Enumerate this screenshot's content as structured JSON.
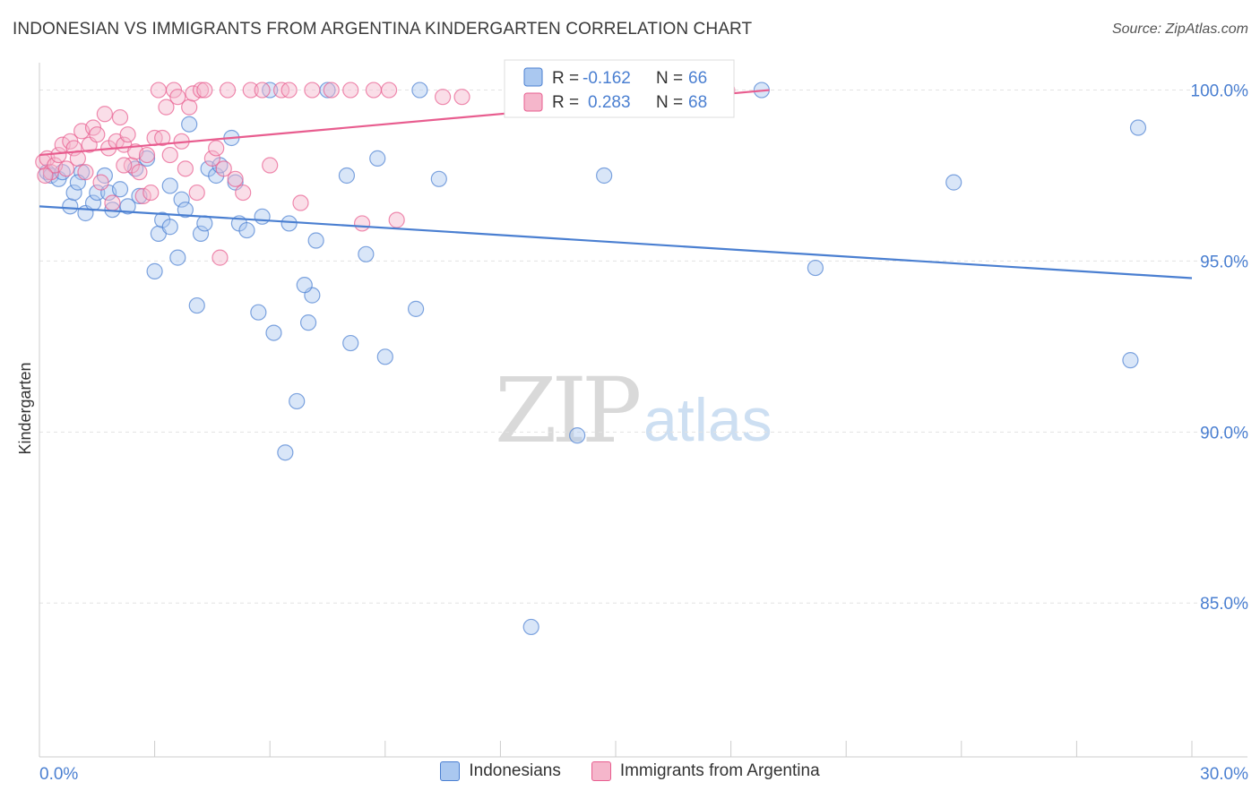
{
  "title": "INDONESIAN VS IMMIGRANTS FROM ARGENTINA KINDERGARTEN CORRELATION CHART",
  "source": "Source: ZipAtlas.com",
  "watermark": {
    "zip": "ZIP",
    "atlas": "atlas"
  },
  "colors": {
    "blue": "#4a7fd1",
    "blue_fill": "#aac8f0",
    "pink": "#e85d8f",
    "pink_fill": "#f5b6cb"
  },
  "legend": {
    "rows": [
      {
        "r_label": "R =",
        "r_value": "-0.162",
        "n_label": "N =",
        "n_value": "66"
      },
      {
        "r_label": "R =",
        "r_value": "0.283",
        "n_label": "N =",
        "n_value": "68"
      }
    ]
  },
  "chart_data": {
    "type": "scatter",
    "title": "INDONESIAN VS IMMIGRANTS FROM ARGENTINA KINDERGARTEN CORRELATION CHART",
    "xlabel": "",
    "ylabel": "Kindergarten",
    "xlim": [
      0,
      30
    ],
    "ylim": [
      80.5,
      100.8
    ],
    "x_tick_labels": [
      "0.0%",
      "30.0%"
    ],
    "y_ticks": [
      85,
      90,
      95,
      100
    ],
    "y_tick_labels": [
      "85.0%",
      "90.0%",
      "95.0%",
      "100.0%"
    ],
    "legend_position": "bottom-center",
    "series": [
      {
        "name": "Indonesians",
        "color": "#4a7fd1",
        "r": -0.162,
        "n": 66,
        "trend": {
          "x": [
            0,
            30
          ],
          "y": [
            96.6,
            94.5
          ]
        },
        "points": [
          [
            0.2,
            97.6
          ],
          [
            0.3,
            97.5
          ],
          [
            0.5,
            97.4
          ],
          [
            0.6,
            97.6
          ],
          [
            0.8,
            96.6
          ],
          [
            0.9,
            97.0
          ],
          [
            1.1,
            97.6
          ],
          [
            1.2,
            96.4
          ],
          [
            1.4,
            96.7
          ],
          [
            1.5,
            97.0
          ],
          [
            1.7,
            97.5
          ],
          [
            1.8,
            97.0
          ],
          [
            1.9,
            96.5
          ],
          [
            2.1,
            97.1
          ],
          [
            2.3,
            96.6
          ],
          [
            2.5,
            97.7
          ],
          [
            2.6,
            96.9
          ],
          [
            2.8,
            98.0
          ],
          [
            3.0,
            94.7
          ],
          [
            3.1,
            95.8
          ],
          [
            3.2,
            96.2
          ],
          [
            3.4,
            97.2
          ],
          [
            3.6,
            95.1
          ],
          [
            3.7,
            96.8
          ],
          [
            3.8,
            96.5
          ],
          [
            3.9,
            99.0
          ],
          [
            4.1,
            93.7
          ],
          [
            4.2,
            95.8
          ],
          [
            4.3,
            96.1
          ],
          [
            4.4,
            97.7
          ],
          [
            4.6,
            97.5
          ],
          [
            4.7,
            97.8
          ],
          [
            5.0,
            98.6
          ],
          [
            5.1,
            97.3
          ],
          [
            5.2,
            96.1
          ],
          [
            5.4,
            95.9
          ],
          [
            5.7,
            93.5
          ],
          [
            5.8,
            96.3
          ],
          [
            6.1,
            92.9
          ],
          [
            6.0,
            100.0
          ],
          [
            6.4,
            89.4
          ],
          [
            6.5,
            96.1
          ],
          [
            6.7,
            90.9
          ],
          [
            7.0,
            93.2
          ],
          [
            7.1,
            94.0
          ],
          [
            7.2,
            95.6
          ],
          [
            7.5,
            100.0
          ],
          [
            8.0,
            97.5
          ],
          [
            8.1,
            92.6
          ],
          [
            8.5,
            95.2
          ],
          [
            8.8,
            98.0
          ],
          [
            9.0,
            92.2
          ],
          [
            9.8,
            93.6
          ],
          [
            9.9,
            100.0
          ],
          [
            10.4,
            97.4
          ],
          [
            12.8,
            84.3
          ],
          [
            14.0,
            89.9
          ],
          [
            14.7,
            97.5
          ],
          [
            18.8,
            100.0
          ],
          [
            20.2,
            94.8
          ],
          [
            23.8,
            97.3
          ],
          [
            28.6,
            98.9
          ],
          [
            28.4,
            92.1
          ],
          [
            1.0,
            97.3
          ],
          [
            3.4,
            96.0
          ],
          [
            6.9,
            94.3
          ]
        ]
      },
      {
        "name": "Immigrants from Argentina",
        "color": "#e85d8f",
        "r": 0.283,
        "n": 68,
        "trend": {
          "x": [
            0,
            19.0
          ],
          "y": [
            98.1,
            100.0
          ]
        },
        "points": [
          [
            0.1,
            97.9
          ],
          [
            0.2,
            98.0
          ],
          [
            0.3,
            97.6
          ],
          [
            0.4,
            97.8
          ],
          [
            0.5,
            98.1
          ],
          [
            0.6,
            98.4
          ],
          [
            0.7,
            97.7
          ],
          [
            0.8,
            98.5
          ],
          [
            0.9,
            98.3
          ],
          [
            1.0,
            98.0
          ],
          [
            1.1,
            98.8
          ],
          [
            1.2,
            97.6
          ],
          [
            1.3,
            98.4
          ],
          [
            1.4,
            98.9
          ],
          [
            1.5,
            98.7
          ],
          [
            1.6,
            97.3
          ],
          [
            1.7,
            99.3
          ],
          [
            1.8,
            98.3
          ],
          [
            1.9,
            96.7
          ],
          [
            2.0,
            98.5
          ],
          [
            2.1,
            99.2
          ],
          [
            2.2,
            98.4
          ],
          [
            2.3,
            98.7
          ],
          [
            2.4,
            97.8
          ],
          [
            2.5,
            98.2
          ],
          [
            2.6,
            97.6
          ],
          [
            2.7,
            96.9
          ],
          [
            2.8,
            98.1
          ],
          [
            2.9,
            97.0
          ],
          [
            3.0,
            98.6
          ],
          [
            3.1,
            100.0
          ],
          [
            3.2,
            98.6
          ],
          [
            3.3,
            99.5
          ],
          [
            3.4,
            98.1
          ],
          [
            3.5,
            100.0
          ],
          [
            3.6,
            99.8
          ],
          [
            3.7,
            98.5
          ],
          [
            3.8,
            97.7
          ],
          [
            3.9,
            99.5
          ],
          [
            4.0,
            99.9
          ],
          [
            4.1,
            97.0
          ],
          [
            4.2,
            100.0
          ],
          [
            4.3,
            100.0
          ],
          [
            4.5,
            98.0
          ],
          [
            4.6,
            98.3
          ],
          [
            4.8,
            97.7
          ],
          [
            4.9,
            100.0
          ],
          [
            5.1,
            97.4
          ],
          [
            5.3,
            97.0
          ],
          [
            5.5,
            100.0
          ],
          [
            5.8,
            100.0
          ],
          [
            6.0,
            97.8
          ],
          [
            6.3,
            100.0
          ],
          [
            6.5,
            100.0
          ],
          [
            6.8,
            96.7
          ],
          [
            7.1,
            100.0
          ],
          [
            7.6,
            100.0
          ],
          [
            8.1,
            100.0
          ],
          [
            8.4,
            96.1
          ],
          [
            8.7,
            100.0
          ],
          [
            9.1,
            100.0
          ],
          [
            9.3,
            96.2
          ],
          [
            10.5,
            99.8
          ],
          [
            11.0,
            99.8
          ],
          [
            17.9,
            100.0
          ],
          [
            4.7,
            95.1
          ],
          [
            2.2,
            97.8
          ],
          [
            0.15,
            97.5
          ]
        ]
      }
    ]
  },
  "bottom_legend": [
    {
      "label": "Indonesians"
    },
    {
      "label": "Immigrants from Argentina"
    }
  ]
}
